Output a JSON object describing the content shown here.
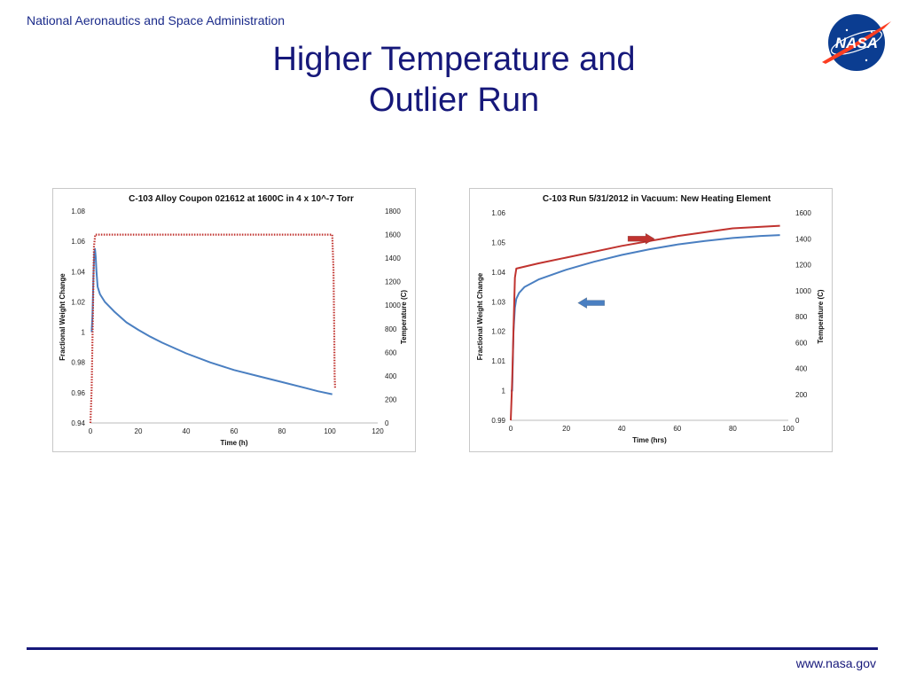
{
  "header": {
    "agency": "National Aeronautics and Space Administration",
    "title_line1": "Higher Temperature and",
    "title_line2": "Outlier Run",
    "logo_text": "NASA"
  },
  "footer": {
    "url": "www.nasa.gov"
  },
  "colors": {
    "navy": "#16187a",
    "weight_series": "#4a7fc1",
    "temperature_series": "#c0332f",
    "logo_blue": "#0b3d91",
    "logo_red": "#fc3d21"
  },
  "chart_data": [
    {
      "type": "line",
      "title": "C-103 Alloy Coupon 021612 at 1600C in 4 x 10^-7 Torr",
      "xlabel": "Time (h)",
      "ylabel": "Fractional Weight Change",
      "y2label": "Temperature (C)",
      "xlim": [
        0,
        120
      ],
      "ylim": [
        0.94,
        1.08
      ],
      "y2lim": [
        0,
        1800
      ],
      "xticks": [
        "0",
        "20",
        "40",
        "60",
        "80",
        "100",
        "120"
      ],
      "yticks": [
        "0.94",
        "0.96",
        "0.98",
        "1",
        "1.02",
        "1.04",
        "1.06",
        "1.08"
      ],
      "y2ticks": [
        "0",
        "200",
        "400",
        "600",
        "800",
        "1000",
        "1200",
        "1400",
        "1600",
        "1800"
      ],
      "grid": false,
      "series": [
        {
          "axis": "left",
          "color": "#4a7fc1",
          "style": "solid",
          "x": [
            0.5,
            0.8,
            1.0,
            1.3,
            1.6,
            1.9,
            2.2,
            2.5,
            3.0,
            4.0,
            6.0,
            10,
            15,
            20,
            25,
            30,
            40,
            50,
            60,
            70,
            80,
            90,
            95,
            101
          ],
          "y": [
            1.0,
            1.01,
            1.02,
            1.04,
            1.052,
            1.055,
            1.05,
            1.04,
            1.03,
            1.025,
            1.02,
            1.0135,
            1.0065,
            1.0015,
            0.997,
            0.993,
            0.986,
            0.98,
            0.975,
            0.971,
            0.967,
            0.963,
            0.961,
            0.959
          ]
        },
        {
          "axis": "right",
          "color": "#c0332f",
          "style": "dotted",
          "x": [
            0,
            0.5,
            1.0,
            1.5,
            2.0,
            10,
            30,
            50,
            70,
            90,
            100,
            101,
            101.5,
            101.8,
            102,
            102.2
          ],
          "y": [
            0,
            300,
            900,
            1500,
            1600,
            1600,
            1600,
            1600,
            1600,
            1600,
            1600,
            1600,
            1300,
            800,
            400,
            300
          ]
        }
      ]
    },
    {
      "type": "line",
      "title": "C-103 Run 5/31/2012 in Vacuum: New Heating Element",
      "xlabel": "Time (hrs)",
      "ylabel": "Fractional Weight Change",
      "y2label": "Temperature (C)",
      "xlim": [
        0,
        100
      ],
      "ylim": [
        0.99,
        1.06
      ],
      "y2lim": [
        0,
        1600
      ],
      "xticks": [
        "0",
        "20",
        "40",
        "60",
        "80",
        "100"
      ],
      "yticks": [
        "0.99",
        "1",
        "1.01",
        "1.02",
        "1.03",
        "1.04",
        "1.05",
        "1.06"
      ],
      "y2ticks": [
        "0",
        "200",
        "400",
        "600",
        "800",
        "1000",
        "1200",
        "1400",
        "1600"
      ],
      "grid": false,
      "series": [
        {
          "axis": "left",
          "color": "#4a7fc1",
          "style": "solid",
          "x": [
            0,
            0.5,
            1.0,
            1.5,
            2,
            3,
            5,
            10,
            20,
            30,
            40,
            50,
            60,
            70,
            80,
            90,
            97
          ],
          "y": [
            1.0,
            1.0,
            1.02,
            1.028,
            1.031,
            1.033,
            1.035,
            1.0375,
            1.0408,
            1.0435,
            1.0458,
            1.0477,
            1.0493,
            1.0505,
            1.0515,
            1.0522,
            1.0525
          ]
        },
        {
          "axis": "right",
          "color": "#c0332f",
          "style": "solid",
          "x": [
            0,
            0.5,
            1.0,
            1.5,
            2,
            10,
            20,
            40,
            60,
            80,
            97
          ],
          "y": [
            0,
            300,
            700,
            1100,
            1170,
            1210,
            1255,
            1345,
            1420,
            1480,
            1500
          ]
        }
      ],
      "annotations": [
        {
          "type": "arrow",
          "direction": "right",
          "color": "#c0332f",
          "x": 47,
          "y2": 1400
        },
        {
          "type": "arrow",
          "direction": "left",
          "color": "#4a7fc1",
          "x": 29,
          "y": 1.0296
        }
      ]
    }
  ]
}
